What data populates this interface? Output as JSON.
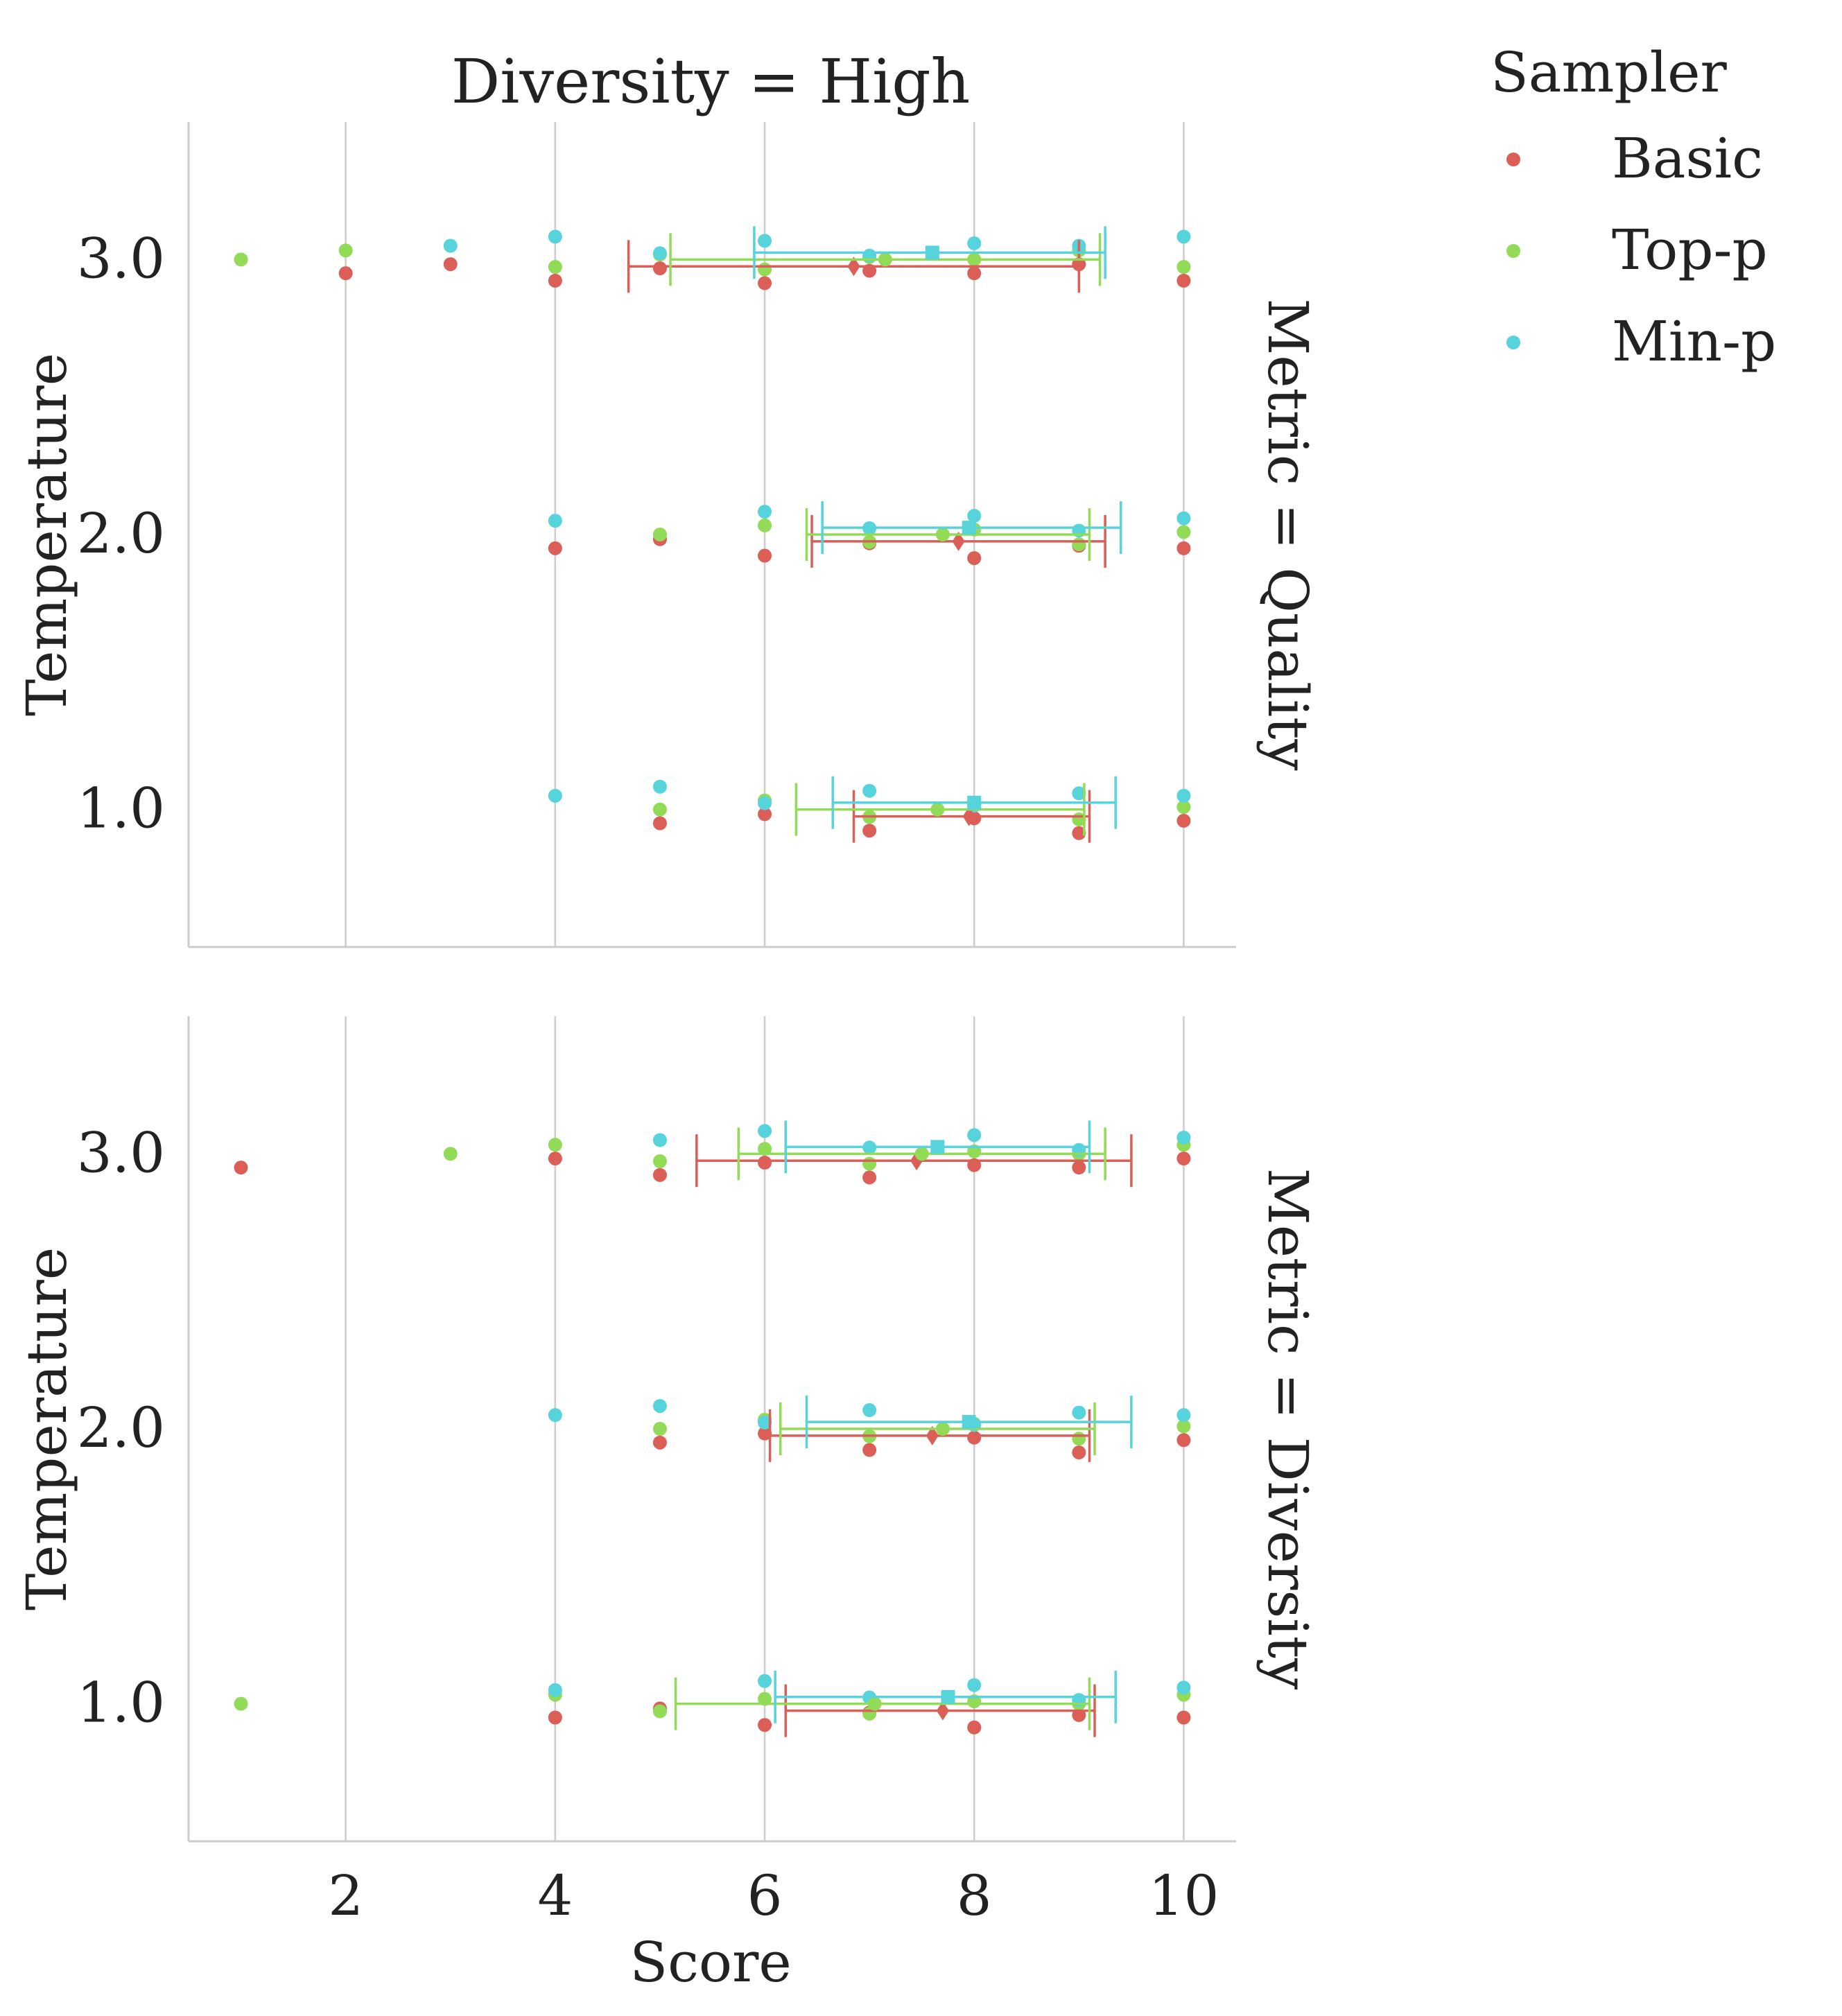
{
  "chart_data": {
    "type": "scatter",
    "column_title": "Diversity = High",
    "xlabel": "Score",
    "ylabel": "Temperature",
    "xlim": [
      0.5,
      10.5
    ],
    "ylim": [
      0.5,
      3.5
    ],
    "xticks": [
      2,
      4,
      6,
      8,
      10
    ],
    "xtick_labels": [
      "2",
      "4",
      "6",
      "8",
      "10"
    ],
    "yticks": [
      1.0,
      2.0,
      3.0
    ],
    "ytick_labels": [
      "1.0",
      "2.0",
      "3.0"
    ],
    "grid": "vertical lines at x ticks",
    "legend": {
      "title": "Sampler",
      "placement": "top-right, outside plots",
      "entries": [
        {
          "name": "Basic",
          "color": "#db5f57"
        },
        {
          "name": "Top-p",
          "color": "#91db57"
        },
        {
          "name": "Min-p",
          "color": "#57d3db"
        }
      ]
    },
    "panels": [
      {
        "row_label": "Metric = Quality",
        "series": [
          {
            "name": "Basic",
            "color": "#db5f57",
            "marker": "diamond",
            "summary": [
              {
                "temperature": 3.0,
                "mean": 6.85,
                "ci": [
                  4.7,
                  9.0
                ]
              },
              {
                "temperature": 2.0,
                "mean": 7.85,
                "ci": [
                  6.45,
                  9.25
                ]
              },
              {
                "temperature": 1.0,
                "mean": 7.95,
                "ci": [
                  6.85,
                  9.1
                ]
              }
            ],
            "points": [
              {
                "temperature": 3.0,
                "scores": [
                  2,
                  3,
                  4,
                  5,
                  6,
                  7,
                  8,
                  9,
                  10
                ]
              },
              {
                "temperature": 2.0,
                "scores": [
                  4,
                  5,
                  6,
                  7,
                  8,
                  9,
                  10
                ]
              },
              {
                "temperature": 1.0,
                "scores": [
                  5,
                  6,
                  7,
                  8,
                  9,
                  10
                ]
              }
            ]
          },
          {
            "name": "Top-p",
            "color": "#91db57",
            "marker": "circle",
            "summary": [
              {
                "temperature": 3.0,
                "mean": 7.15,
                "ci": [
                  5.1,
                  9.2
                ]
              },
              {
                "temperature": 2.0,
                "mean": 7.7,
                "ci": [
                  6.4,
                  9.1
                ]
              },
              {
                "temperature": 1.0,
                "mean": 7.65,
                "ci": [
                  6.3,
                  9.05
                ]
              }
            ],
            "points": [
              {
                "temperature": 3.0,
                "scores": [
                  1,
                  2,
                  4,
                  5,
                  6,
                  7,
                  8,
                  9,
                  10
                ]
              },
              {
                "temperature": 2.0,
                "scores": [
                  5,
                  6,
                  7,
                  8,
                  9,
                  10
                ]
              },
              {
                "temperature": 1.0,
                "scores": [
                  5,
                  6,
                  7,
                  8,
                  9,
                  10
                ]
              }
            ]
          },
          {
            "name": "Min-p",
            "color": "#57d3db",
            "marker": "square",
            "summary": [
              {
                "temperature": 3.0,
                "mean": 7.6,
                "ci": [
                  5.9,
                  9.25
                ]
              },
              {
                "temperature": 2.0,
                "mean": 7.95,
                "ci": [
                  6.55,
                  9.4
                ]
              },
              {
                "temperature": 1.0,
                "mean": 8.0,
                "ci": [
                  6.65,
                  9.35
                ]
              }
            ],
            "points": [
              {
                "temperature": 3.0,
                "scores": [
                  3,
                  4,
                  5,
                  6,
                  7,
                  8,
                  9,
                  10
                ]
              },
              {
                "temperature": 2.0,
                "scores": [
                  4,
                  6,
                  7,
                  8,
                  9,
                  10
                ]
              },
              {
                "temperature": 1.0,
                "scores": [
                  4,
                  5,
                  6,
                  7,
                  8,
                  9,
                  10
                ]
              }
            ]
          }
        ]
      },
      {
        "row_label": "Metric = Diversity",
        "series": [
          {
            "name": "Basic",
            "color": "#db5f57",
            "marker": "diamond",
            "summary": [
              {
                "temperature": 3.0,
                "mean": 7.45,
                "ci": [
                  5.35,
                  9.5
                ]
              },
              {
                "temperature": 2.0,
                "mean": 7.6,
                "ci": [
                  6.05,
                  9.1
                ]
              },
              {
                "temperature": 1.0,
                "mean": 7.7,
                "ci": [
                  6.2,
                  9.15
                ]
              }
            ],
            "points": [
              {
                "temperature": 3.0,
                "scores": [
                  1,
                  4,
                  5,
                  6,
                  7,
                  8,
                  9,
                  10
                ]
              },
              {
                "temperature": 2.0,
                "scores": [
                  5,
                  6,
                  7,
                  8,
                  9,
                  10
                ]
              },
              {
                "temperature": 1.0,
                "scores": [
                  4,
                  5,
                  6,
                  7,
                  8,
                  9,
                  10
                ]
              }
            ]
          },
          {
            "name": "Top-p",
            "color": "#91db57",
            "marker": "circle",
            "summary": [
              {
                "temperature": 3.0,
                "mean": 7.5,
                "ci": [
                  5.75,
                  9.25
                ]
              },
              {
                "temperature": 2.0,
                "mean": 7.7,
                "ci": [
                  6.15,
                  9.15
                ]
              },
              {
                "temperature": 1.0,
                "mean": 7.05,
                "ci": [
                  5.15,
                  9.1
                ]
              }
            ],
            "points": [
              {
                "temperature": 3.0,
                "scores": [
                  3,
                  4,
                  5,
                  6,
                  7,
                  8,
                  9,
                  10
                ]
              },
              {
                "temperature": 2.0,
                "scores": [
                  5,
                  6,
                  7,
                  8,
                  9,
                  10
                ]
              },
              {
                "temperature": 1.0,
                "scores": [
                  1,
                  4,
                  5,
                  6,
                  7,
                  8,
                  9,
                  10
                ]
              }
            ]
          },
          {
            "name": "Min-p",
            "color": "#57d3db",
            "marker": "square",
            "summary": [
              {
                "temperature": 3.0,
                "mean": 7.65,
                "ci": [
                  6.2,
                  9.1
                ]
              },
              {
                "temperature": 2.0,
                "mean": 7.95,
                "ci": [
                  6.4,
                  9.5
                ]
              },
              {
                "temperature": 1.0,
                "mean": 7.75,
                "ci": [
                  6.1,
                  9.35
                ]
              }
            ],
            "points": [
              {
                "temperature": 3.0,
                "scores": [
                  5,
                  6,
                  7,
                  8,
                  9,
                  10
                ]
              },
              {
                "temperature": 2.0,
                "scores": [
                  4,
                  5,
                  6,
                  7,
                  8,
                  9,
                  10
                ]
              },
              {
                "temperature": 1.0,
                "scores": [
                  4,
                  6,
                  7,
                  8,
                  9,
                  10
                ]
              }
            ]
          }
        ]
      }
    ]
  }
}
